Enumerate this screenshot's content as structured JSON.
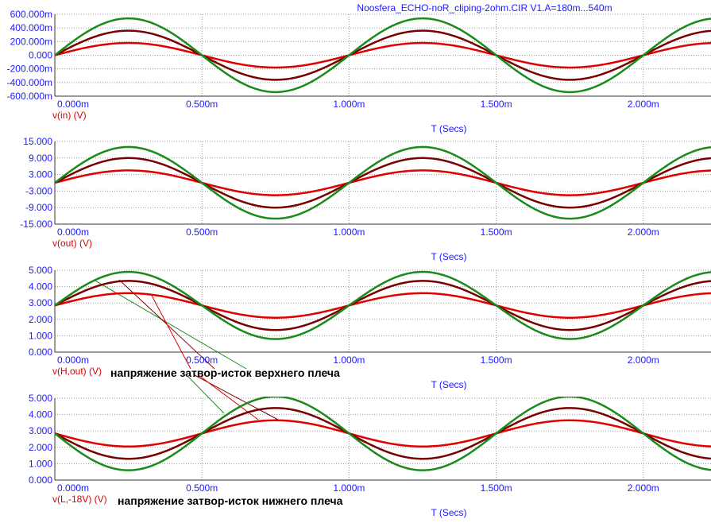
{
  "title": "Noosfera_ECHO-noR_cliping-2ohm.CIR V1.A=180m...540m",
  "colors": {
    "axis_text": "#1a1aff",
    "variable_text": "#e00000",
    "grid": "#9a9a9a",
    "series_180m": "#e00000",
    "series_360m": "#7a0000",
    "series_540m": "#1a8a1a"
  },
  "chart_data": [
    {
      "type": "line",
      "variable_label": "v(in) (V)",
      "xlabel": "T (Secs)",
      "x_range": [
        0,
        2.23
      ],
      "x_ticks": [
        0,
        0.5,
        1.0,
        1.5,
        2.0
      ],
      "x_tick_labels": [
        "0.000m",
        "0.500m",
        "1.000m",
        "1.500m",
        "2.000m"
      ],
      "ylim": [
        -600,
        600
      ],
      "y_ticks": [
        600,
        400,
        200,
        0,
        -200,
        -400,
        -600
      ],
      "y_tick_labels": [
        "600.000m",
        "400.000m",
        "200.000m",
        "0.000",
        "-200.000m",
        "-400.000m",
        "-600.000m"
      ],
      "series": [
        {
          "color": "series_180m",
          "shape": "sine",
          "offset": 0,
          "amp": 180
        },
        {
          "color": "series_360m",
          "shape": "sine",
          "offset": 0,
          "amp": 360
        },
        {
          "color": "series_540m",
          "shape": "sine",
          "offset": 0,
          "amp": 540
        }
      ]
    },
    {
      "type": "line",
      "variable_label": "v(out) (V)",
      "xlabel": "T (Secs)",
      "x_range": [
        0,
        2.23
      ],
      "x_ticks": [
        0,
        0.5,
        1.0,
        1.5,
        2.0
      ],
      "x_tick_labels": [
        "0.000m",
        "0.500m",
        "1.000m",
        "1.500m",
        "2.000m"
      ],
      "ylim": [
        -15,
        15
      ],
      "y_ticks": [
        15,
        9,
        3,
        -3,
        -9,
        -15
      ],
      "y_tick_labels": [
        "15.000",
        "9.000",
        "3.000",
        "-3.000",
        "-9.000",
        "-15.000"
      ],
      "series": [
        {
          "color": "series_180m",
          "shape": "sine",
          "offset": 0,
          "amp": 4.5
        },
        {
          "color": "series_360m",
          "shape": "sine",
          "offset": 0,
          "amp": 9.0
        },
        {
          "color": "series_540m",
          "shape": "sine",
          "offset": 0,
          "amp": 13.0
        }
      ]
    },
    {
      "type": "line",
      "variable_label": "v(H,out) (V)",
      "annotation": "напряжение затвор-исток  верхнего плеча",
      "xlabel": "T (Secs)",
      "x_range": [
        0,
        2.23
      ],
      "x_ticks": [
        0,
        0.5,
        1.0,
        1.5,
        2.0
      ],
      "x_tick_labels": [
        "0.000m",
        "0.500m",
        "1.000m",
        "1.500m",
        "2.000m"
      ],
      "ylim": [
        0,
        5
      ],
      "y_ticks": [
        5,
        4,
        3,
        2,
        1,
        0
      ],
      "y_tick_labels": [
        "5.000",
        "4.000",
        "3.000",
        "2.000",
        "1.000",
        "0.000"
      ],
      "series": [
        {
          "color": "series_180m",
          "shape": "sine",
          "offset": 2.85,
          "amp": 0.75
        },
        {
          "color": "series_360m",
          "shape": "sine",
          "offset": 2.85,
          "amp": 1.5,
          "min": 1.3
        },
        {
          "color": "series_540m",
          "shape": "sine",
          "offset": 2.85,
          "amp": 2.05,
          "min": 0.5,
          "cusp": true
        }
      ]
    },
    {
      "type": "line",
      "variable_label": "v(L,-18V) (V)",
      "annotation": "напряжение затвор-исток нижнего плеча",
      "xlabel": "T (Secs)",
      "x_range": [
        0,
        2.23
      ],
      "x_ticks": [
        0,
        0.5,
        1.0,
        1.5,
        2.0
      ],
      "x_tick_labels": [
        "0.000m",
        "0.500m",
        "1.000m",
        "1.500m",
        "2.000m"
      ],
      "ylim": [
        0,
        5
      ],
      "y_ticks": [
        5,
        4,
        3,
        2,
        1,
        0
      ],
      "y_tick_labels": [
        "5.000",
        "4.000",
        "3.000",
        "2.000",
        "1.000",
        "0.000"
      ],
      "series": [
        {
          "color": "series_180m",
          "shape": "invsine",
          "offset": 2.85,
          "amp": 0.8
        },
        {
          "color": "series_360m",
          "shape": "invsine",
          "offset": 2.85,
          "amp": 1.55
        },
        {
          "color": "series_540m",
          "shape": "invsine",
          "offset": 2.85,
          "amp": 2.25
        }
      ]
    }
  ]
}
